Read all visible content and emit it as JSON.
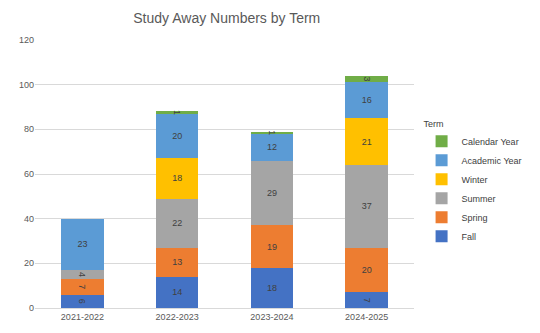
{
  "chart_data": {
    "type": "bar",
    "title": "Study Away Numbers by Term",
    "categories": [
      "2021-2022",
      "2022-2023",
      "2023-2024",
      "2024-2025"
    ],
    "series": [
      {
        "name": "Fall",
        "color": "#4472c4",
        "values": [
          6,
          14,
          18,
          7
        ]
      },
      {
        "name": "Spring",
        "color": "#ed7d31",
        "values": [
          7,
          13,
          19,
          20
        ]
      },
      {
        "name": "Summer",
        "color": "#a5a5a5",
        "values": [
          4,
          22,
          29,
          37
        ]
      },
      {
        "name": "Winter",
        "color": "#ffc000",
        "values": [
          null,
          18,
          null,
          21
        ]
      },
      {
        "name": "Academic Year",
        "color": "#5b9bd5",
        "values": [
          23,
          20,
          12,
          16
        ]
      },
      {
        "name": "Calendar Year",
        "color": "#70ad47",
        "values": [
          null,
          1,
          1,
          3
        ]
      }
    ],
    "legend_title": "Term",
    "ylim": [
      0,
      120
    ],
    "yticks": [
      0,
      20,
      40,
      60,
      80,
      100,
      120
    ],
    "grid": true,
    "stacked": true,
    "data_labels": true,
    "legend": "right"
  }
}
